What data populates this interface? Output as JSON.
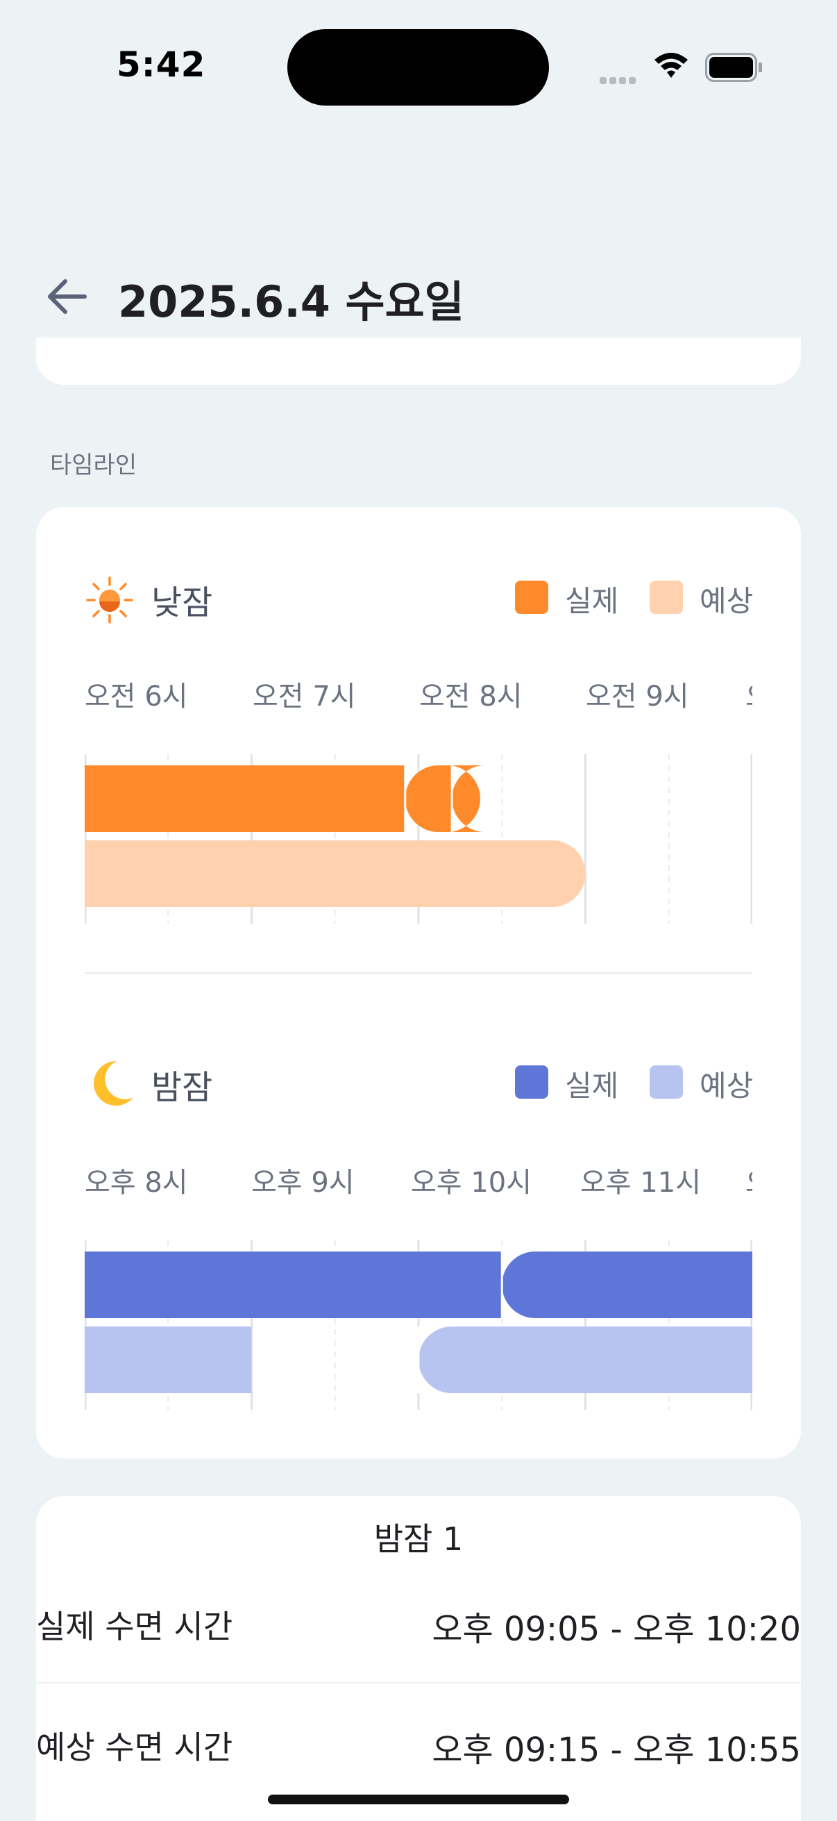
{
  "status_bar": {
    "time": "5:42",
    "icons": [
      "signal-icon",
      "wifi-icon",
      "battery-icon"
    ]
  },
  "header": {
    "back_icon": "arrow-left-icon",
    "title": "2025.6.4 수요일"
  },
  "section": {
    "timeline_label": "타임라인"
  },
  "colors": {
    "nap_actual": "#ff8a2b",
    "nap_expected": "#ffd1ae",
    "night_actual": "#5f76d9",
    "night_expected": "#b8c4f0",
    "background": "#edf2f5"
  },
  "chart_data": [
    {
      "type": "bar",
      "title": "낮잠",
      "icon": "sun-icon",
      "legend": [
        "실제",
        "예상"
      ],
      "x_ticks": [
        "오전 6시",
        "오전 7시",
        "오전 8시",
        "오전 9시",
        "오"
      ],
      "x_range": [
        6.0,
        10.0
      ],
      "series": [
        {
          "name": "실제",
          "segments": [
            [
              6.0,
              7.92
            ],
            [
              7.92,
              8.2
            ],
            [
              8.2,
              8.37
            ]
          ]
        },
        {
          "name": "예상",
          "segments": [
            [
              6.0,
              9.0
            ]
          ]
        }
      ]
    },
    {
      "type": "bar",
      "title": "밤잠",
      "icon": "moon-icon",
      "legend": [
        "실제",
        "예상"
      ],
      "x_ticks": [
        "오후 8시",
        "오후 9시",
        "오후 10시",
        "오후 11시",
        "오"
      ],
      "x_range": [
        20.0,
        24.0
      ],
      "series": [
        {
          "name": "실제",
          "segments": [
            [
              20.0,
              22.5
            ],
            [
              22.5,
              24.0
            ]
          ]
        },
        {
          "name": "예상",
          "segments": [
            [
              20.0,
              21.0
            ],
            [
              22.0,
              24.0
            ]
          ]
        }
      ]
    }
  ],
  "detail": {
    "title": "밤잠 1",
    "rows": [
      {
        "label": "실제 수면 시간",
        "value": "오후 09:05 - 오후 10:20"
      },
      {
        "label": "예상 수면 시간",
        "value": "오후 09:15 - 오후 10:55"
      }
    ]
  }
}
